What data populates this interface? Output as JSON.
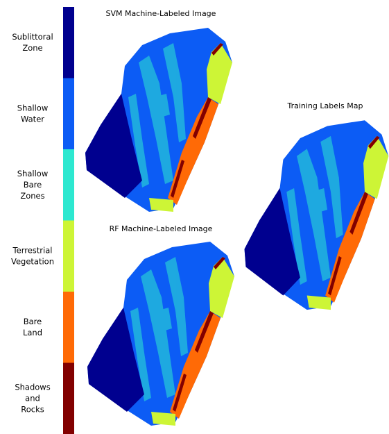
{
  "legend": {
    "items": [
      {
        "lines": [
          "Sublittoral",
          "Zone"
        ],
        "color": "#00008f"
      },
      {
        "lines": [
          "Shallow",
          "Water"
        ],
        "color": "#0c5cf5"
      },
      {
        "lines": [
          "Shallow",
          "Bare",
          "Zones"
        ],
        "color": "#2de8d0"
      },
      {
        "lines": [
          "Terrestrial",
          "Vegetation"
        ],
        "color": "#cdf536"
      },
      {
        "lines": [
          "Bare",
          "Land"
        ],
        "color": "#ff6a06"
      },
      {
        "lines": [
          "Shadows",
          "and",
          "Rocks"
        ],
        "color": "#820000"
      }
    ]
  },
  "panels": [
    {
      "title": "SVM Machine-Labeled Image"
    },
    {
      "title": "RF Machine-Labeled Image"
    },
    {
      "title": "Training Labels Map"
    }
  ]
}
